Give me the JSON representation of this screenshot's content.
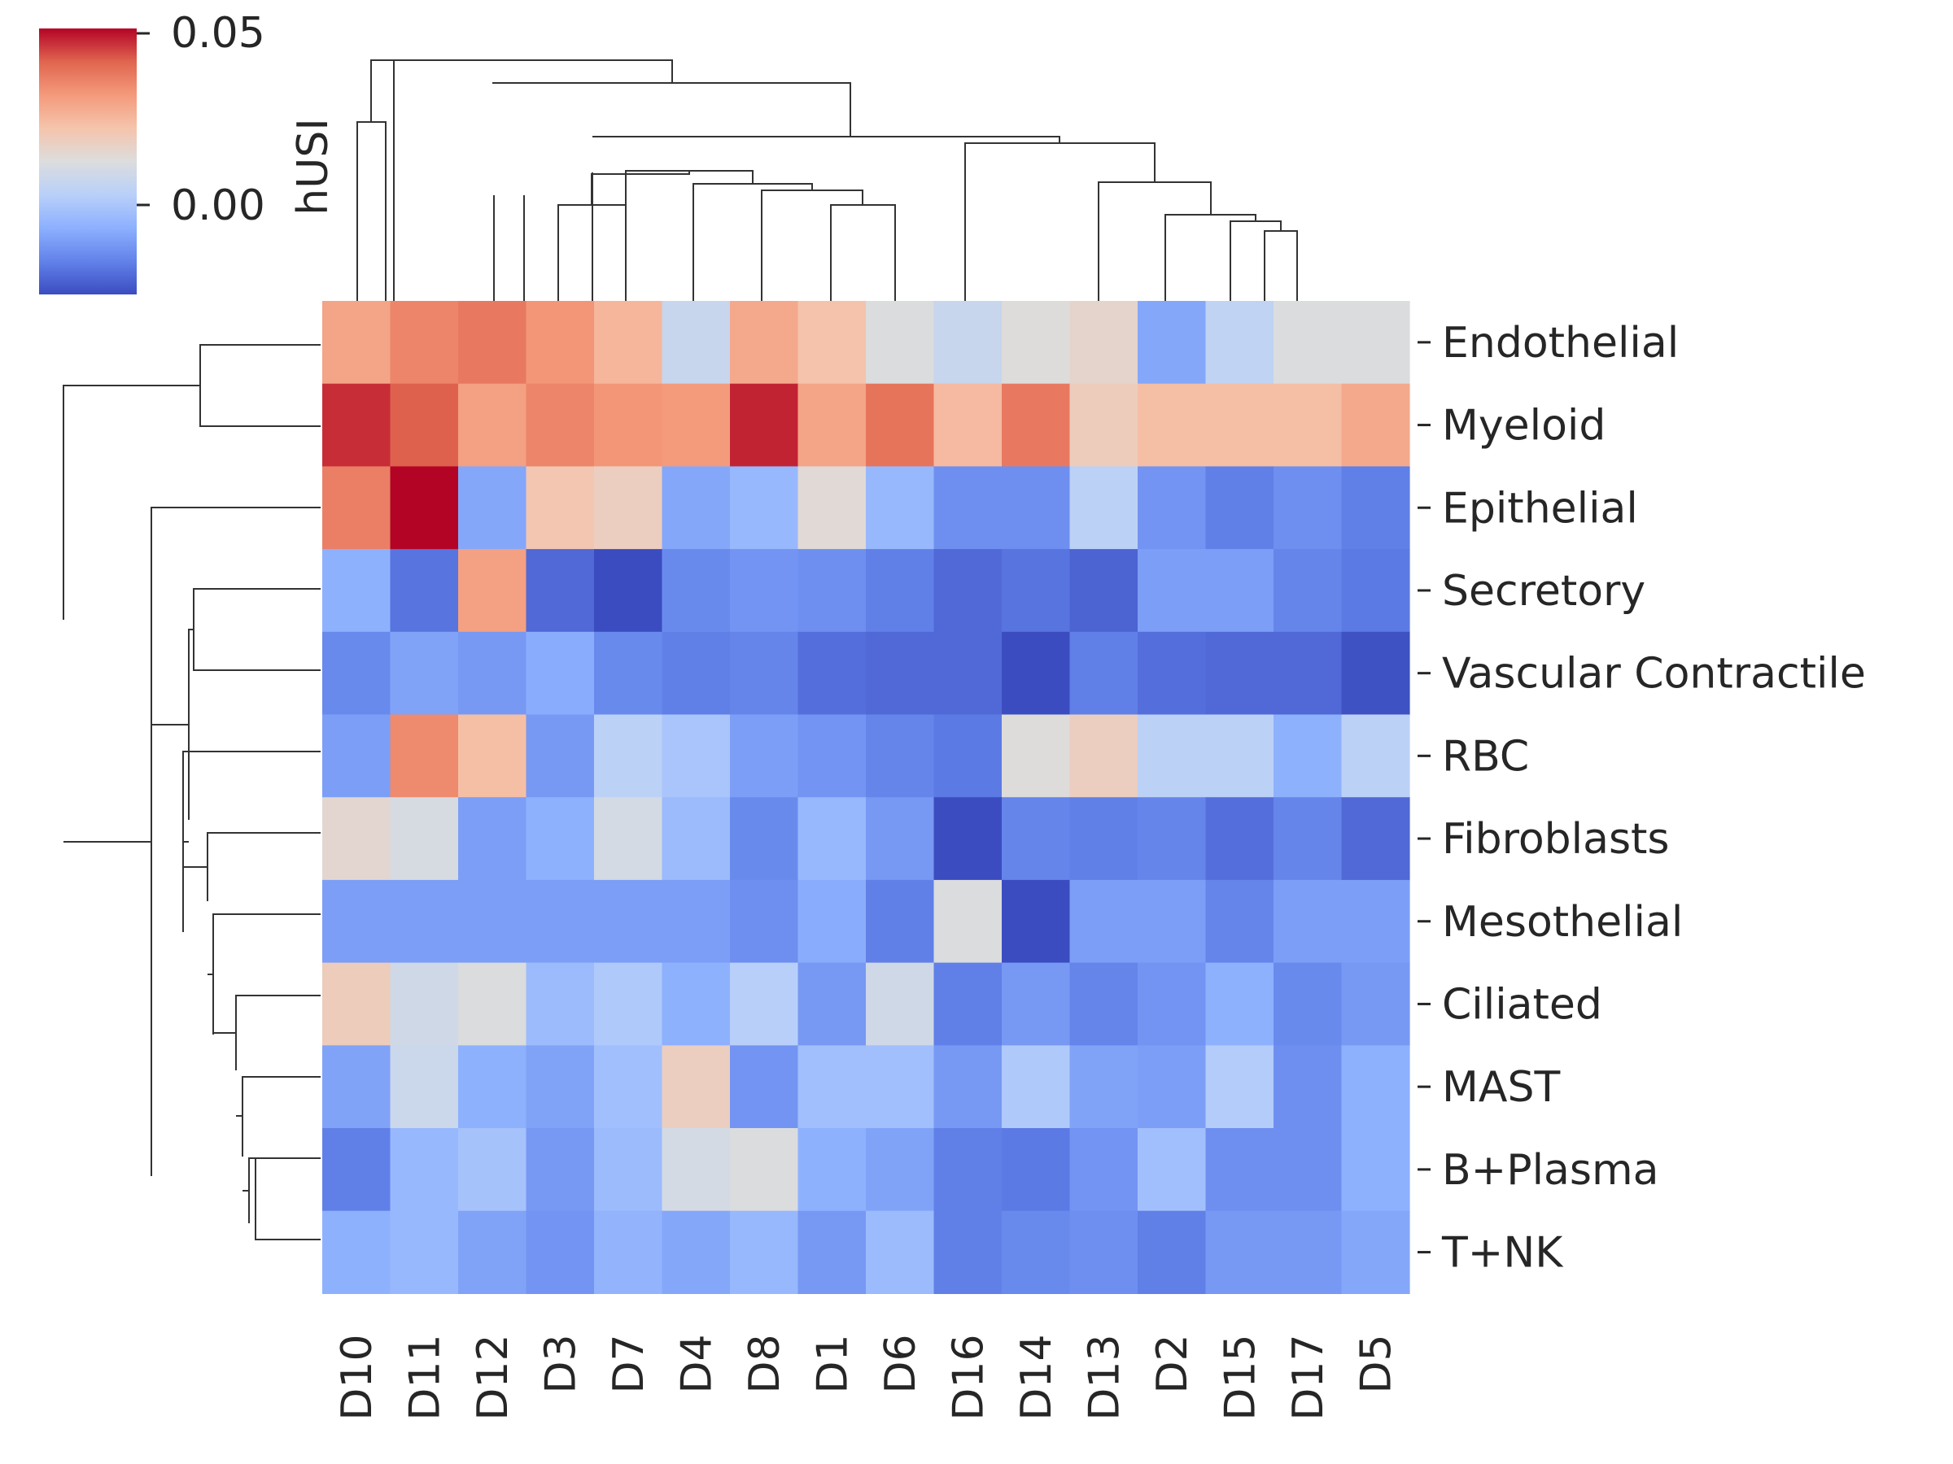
{
  "chart_data": {
    "type": "heatmap",
    "title": "",
    "colorbar": {
      "label": "hUSI",
      "ticks": [
        "0.05",
        "0.00"
      ],
      "range": [
        -0.025,
        0.05
      ]
    },
    "columns": [
      "D10",
      "D11",
      "D12",
      "D3",
      "D7",
      "D4",
      "D8",
      "D1",
      "D6",
      "D16",
      "D14",
      "D13",
      "D2",
      "D15",
      "D17",
      "D5"
    ],
    "rows": [
      "Endothelial",
      "Myeloid",
      "Epithelial",
      "Secretory",
      "Vascular Contractile",
      "RBC",
      "Fibroblasts",
      "Mesothelial",
      "Ciliated",
      "MAST",
      "B+Plasma",
      "T+NK"
    ],
    "values": [
      [
        0.029,
        0.035,
        0.037,
        0.032,
        0.025,
        0.007,
        0.028,
        0.022,
        0.012,
        0.007,
        0.013,
        0.016,
        -0.008,
        0.005,
        0.012,
        0.012
      ],
      [
        0.046,
        0.041,
        0.03,
        0.035,
        0.032,
        0.031,
        0.047,
        0.029,
        0.038,
        0.024,
        0.037,
        0.019,
        0.023,
        0.023,
        0.023,
        0.028
      ],
      [
        0.036,
        0.052,
        -0.008,
        0.021,
        0.018,
        -0.008,
        -0.004,
        0.014,
        -0.004,
        -0.013,
        -0.013,
        0.004,
        -0.012,
        -0.016,
        -0.013,
        -0.016
      ],
      [
        -0.006,
        -0.018,
        0.03,
        -0.02,
        -0.025,
        -0.014,
        -0.012,
        -0.013,
        -0.016,
        -0.02,
        -0.018,
        -0.021,
        -0.01,
        -0.01,
        -0.015,
        -0.017
      ],
      [
        -0.014,
        -0.009,
        -0.011,
        -0.007,
        -0.014,
        -0.016,
        -0.015,
        -0.019,
        -0.02,
        -0.02,
        -0.025,
        -0.016,
        -0.019,
        -0.02,
        -0.02,
        -0.024
      ],
      [
        -0.01,
        0.034,
        0.023,
        -0.011,
        0.004,
        0.0,
        -0.01,
        -0.012,
        -0.015,
        -0.017,
        0.013,
        0.018,
        0.004,
        0.004,
        -0.006,
        0.004
      ],
      [
        0.015,
        0.011,
        -0.01,
        -0.006,
        0.01,
        -0.003,
        -0.014,
        -0.004,
        -0.011,
        -0.025,
        -0.015,
        -0.016,
        -0.015,
        -0.019,
        -0.015,
        -0.02
      ],
      [
        -0.01,
        -0.01,
        -0.01,
        -0.01,
        -0.01,
        -0.01,
        -0.013,
        -0.007,
        -0.016,
        0.012,
        -0.025,
        -0.01,
        -0.01,
        -0.015,
        -0.01,
        -0.01
      ],
      [
        0.019,
        0.009,
        0.012,
        -0.003,
        0.001,
        -0.006,
        0.003,
        -0.011,
        0.009,
        -0.016,
        -0.011,
        -0.015,
        -0.012,
        -0.006,
        -0.014,
        -0.011
      ],
      [
        -0.009,
        0.008,
        -0.006,
        -0.009,
        -0.002,
        0.018,
        -0.012,
        -0.002,
        -0.002,
        -0.011,
        0.001,
        -0.009,
        -0.01,
        0.002,
        -0.013,
        -0.006
      ],
      [
        -0.016,
        -0.004,
        -0.001,
        -0.011,
        -0.003,
        0.01,
        0.012,
        -0.006,
        -0.009,
        -0.016,
        -0.017,
        -0.012,
        -0.002,
        -0.013,
        -0.013,
        -0.006
      ],
      [
        -0.006,
        -0.004,
        -0.009,
        -0.012,
        -0.005,
        -0.008,
        -0.004,
        -0.011,
        -0.003,
        -0.016,
        -0.014,
        -0.013,
        -0.016,
        -0.011,
        -0.011,
        -0.008
      ]
    ]
  }
}
